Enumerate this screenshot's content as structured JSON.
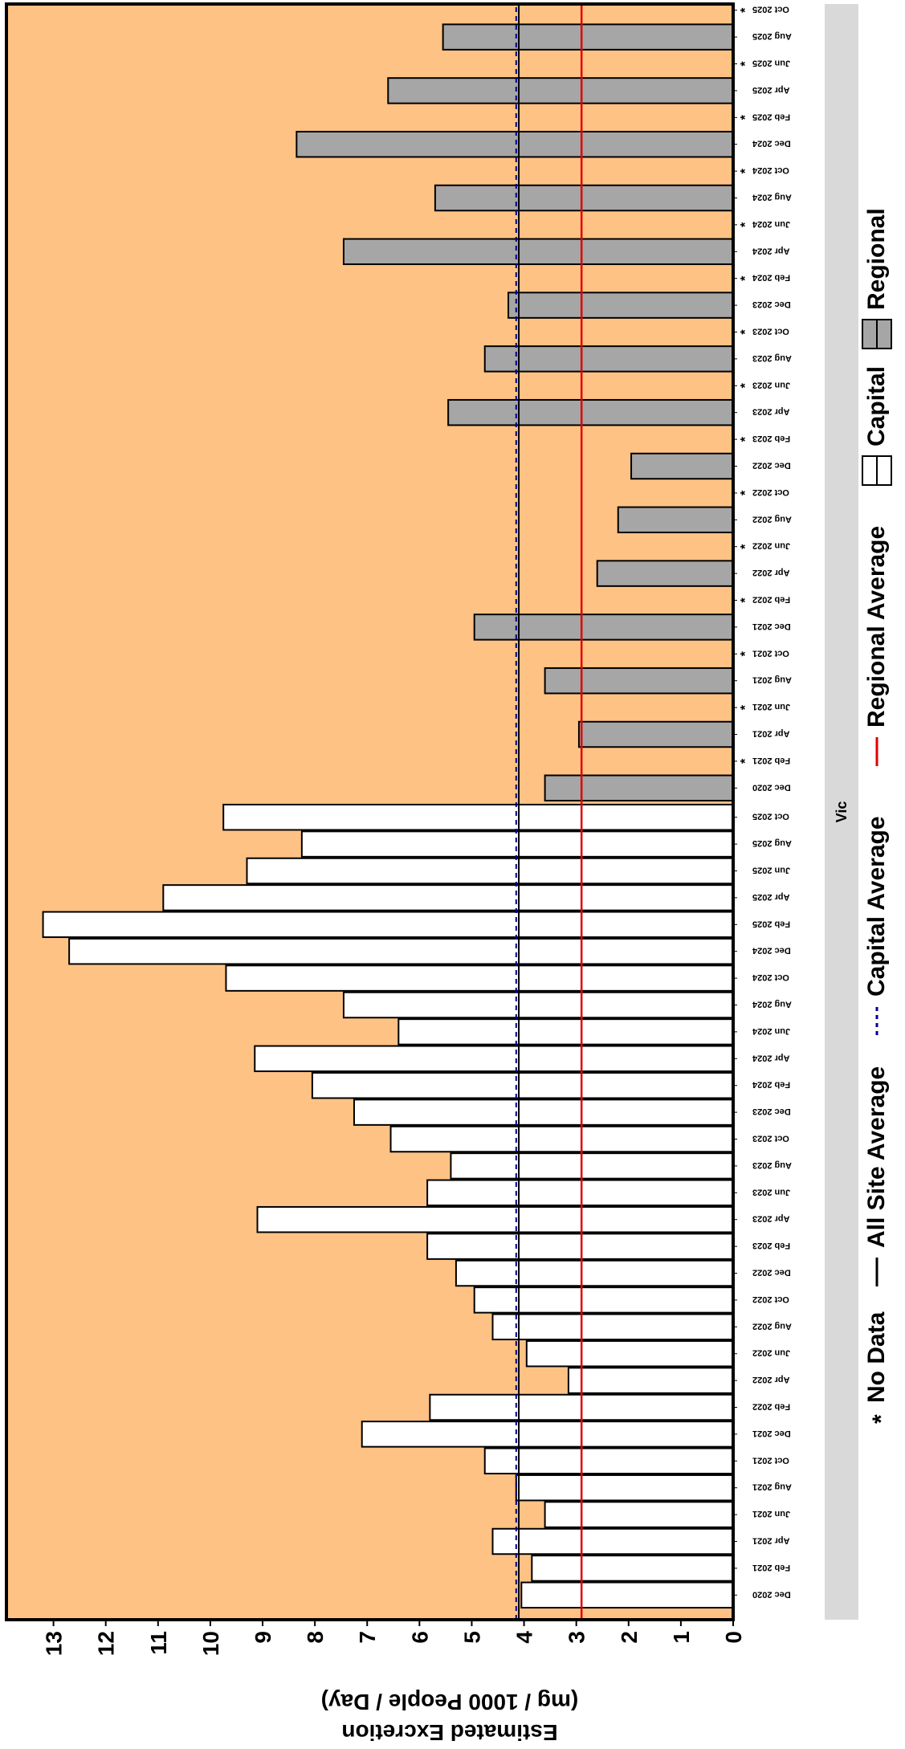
{
  "chart_data": {
    "type": "bar",
    "panel_label": "Vic",
    "ylabel_line1": "Estimated Excretion",
    "ylabel_line2": "(mg / 1000 People / Day)",
    "ylim": [
      0,
      13.9
    ],
    "y_ticks": [
      0,
      1,
      2,
      3,
      4,
      5,
      6,
      7,
      8,
      9,
      10,
      11,
      12,
      13
    ],
    "background_color": "#FFC285",
    "capital_bar_color": "#FFFFFF",
    "regional_bar_color": "#A6A6A6",
    "all_site_average_color": "#000000",
    "capital_average_color": "#00008B",
    "regional_average_color": "#E00000",
    "all_site_average": 4.1,
    "capital_average": 4.15,
    "regional_average": 2.9,
    "groups": [
      {
        "name": "Capital",
        "categories": [
          "Dec 2020",
          "Feb 2021",
          "Apr 2021",
          "Jun 2021",
          "Aug 2021",
          "Oct 2021",
          "Dec 2021",
          "Feb 2022",
          "Apr 2022",
          "Jun 2022",
          "Aug 2022",
          "Oct 2022",
          "Dec 2022",
          "Feb 2023",
          "Apr 2023",
          "Jun 2023",
          "Aug 2023",
          "Oct 2023",
          "Dec 2023",
          "Feb 2024",
          "Apr 2024",
          "Jun 2024",
          "Aug 2024",
          "Oct 2024",
          "Dec 2024",
          "Feb 2025",
          "Apr 2025",
          "Jun 2025",
          "Aug 2025",
          "Oct 2025"
        ],
        "values": [
          4.05,
          3.85,
          4.6,
          3.6,
          4.15,
          4.75,
          7.1,
          5.8,
          3.15,
          3.95,
          4.6,
          4.95,
          5.3,
          5.85,
          9.1,
          5.85,
          5.4,
          6.55,
          7.25,
          8.05,
          9.15,
          6.4,
          7.45,
          9.7,
          12.7,
          13.2,
          10.9,
          9.3,
          8.25,
          9.75
        ],
        "no_data": [
          false,
          false,
          false,
          false,
          false,
          false,
          false,
          false,
          false,
          false,
          false,
          false,
          false,
          false,
          false,
          false,
          false,
          false,
          false,
          false,
          false,
          false,
          false,
          false,
          false,
          false,
          false,
          false,
          false,
          false
        ]
      },
      {
        "name": "Regional",
        "categories": [
          "Dec 2020",
          "Feb 2021",
          "Apr 2021",
          "Jun 2021",
          "Aug 2021",
          "Oct 2021",
          "Dec 2021",
          "Feb 2022",
          "Apr 2022",
          "Jun 2022",
          "Aug 2022",
          "Oct 2022",
          "Dec 2022",
          "Feb 2023",
          "Apr 2023",
          "Jun 2023",
          "Aug 2023",
          "Oct 2023",
          "Dec 2023",
          "Feb 2024",
          "Apr 2024",
          "Jun 2024",
          "Aug 2024",
          "Oct 2024",
          "Dec 2024",
          "Feb 2025",
          "Apr 2025",
          "Jun 2025",
          "Aug 2025",
          "Oct 2025"
        ],
        "values": [
          3.6,
          null,
          2.95,
          null,
          3.6,
          null,
          4.95,
          null,
          2.6,
          null,
          2.2,
          null,
          1.95,
          null,
          5.45,
          null,
          4.75,
          null,
          4.3,
          null,
          7.45,
          null,
          5.7,
          null,
          8.35,
          null,
          6.6,
          null,
          5.55,
          null
        ],
        "no_data": [
          false,
          true,
          false,
          true,
          false,
          true,
          false,
          true,
          false,
          true,
          false,
          true,
          false,
          true,
          false,
          true,
          false,
          true,
          false,
          true,
          false,
          true,
          false,
          true,
          false,
          true,
          false,
          true,
          false,
          true
        ]
      }
    ],
    "legend": {
      "placement": "bottom",
      "no_data_symbol": "*",
      "no_data_label": "No Data",
      "all_site_label": "All Site Average",
      "capital_avg_label": "Capital Average",
      "regional_avg_label": "Regional Average",
      "capital_label": "Capital",
      "regional_label": "Regional"
    }
  }
}
